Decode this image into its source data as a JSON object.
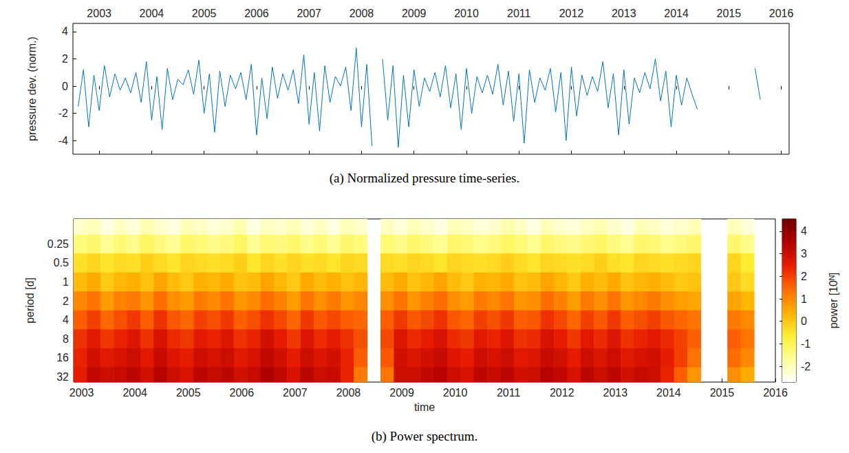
{
  "chart_data": [
    {
      "type": "line",
      "title": "(a) Normalized pressure time-series.",
      "y_label": "pressure dev. (norm.)",
      "color": "#0072bd",
      "xlim": [
        2002.5,
        2016.15
      ],
      "xticks": [
        2003,
        2004,
        2005,
        2006,
        2007,
        2008,
        2009,
        2010,
        2011,
        2012,
        2013,
        2014,
        2015,
        2016
      ],
      "ylim": [
        -5,
        4.6
      ],
      "yticks": [
        -4,
        -2,
        0,
        2,
        4
      ],
      "grid": false,
      "x": [
        2002.6,
        2002.7,
        2002.8,
        2002.9,
        2003,
        2003.1,
        2003.2,
        2003.3,
        2003.4,
        2003.5,
        2003.6,
        2003.7,
        2003.8,
        2003.9,
        2004,
        2004.1,
        2004.2,
        2004.3,
        2004.4,
        2004.5,
        2004.6,
        2004.7,
        2004.8,
        2004.9,
        2005,
        2005.1,
        2005.2,
        2005.3,
        2005.4,
        2005.5,
        2005.6,
        2005.7,
        2005.8,
        2005.9,
        2006,
        2006.1,
        2006.2,
        2006.3,
        2006.4,
        2006.5,
        2006.6,
        2006.7,
        2006.8,
        2006.9,
        2007,
        2007.1,
        2007.2,
        2007.3,
        2007.4,
        2007.5,
        2007.6,
        2007.7,
        2007.8,
        2007.9,
        2008,
        2008.1,
        2008.2,
        2008.3,
        2008.4,
        2008.5,
        2008.6,
        2008.7,
        2008.8,
        2008.9,
        2009,
        2009.1,
        2009.2,
        2009.3,
        2009.4,
        2009.5,
        2009.6,
        2009.7,
        2009.8,
        2009.9,
        2010,
        2010.1,
        2010.2,
        2010.3,
        2010.4,
        2010.5,
        2010.6,
        2010.7,
        2010.8,
        2010.9,
        2011,
        2011.1,
        2011.2,
        2011.3,
        2011.4,
        2011.5,
        2011.6,
        2011.7,
        2011.8,
        2011.9,
        2012,
        2012.1,
        2012.2,
        2012.3,
        2012.4,
        2012.5,
        2012.6,
        2012.7,
        2012.8,
        2012.9,
        2013,
        2013.1,
        2013.2,
        2013.3,
        2013.4,
        2013.5,
        2013.6,
        2013.7,
        2013.8,
        2013.9,
        2014,
        2014.1,
        2014.2,
        2014.3,
        2014.4,
        2015,
        2015.5,
        2015.6
      ],
      "values": [
        -1.5,
        1.2,
        -3.0,
        0.8,
        -1.8,
        1.5,
        -0.8,
        0.9,
        -0.3,
        0.6,
        -0.5,
        1.0,
        -1.2,
        1.8,
        -2.5,
        0.7,
        -3.2,
        1.3,
        -1.0,
        0.5,
        0.1,
        1.2,
        -0.6,
        1.9,
        -2.0,
        0.9,
        -3.4,
        1.1,
        -1.5,
        0.8,
        -0.2,
        1.0,
        -1.0,
        1.6,
        -3.6,
        0.6,
        -2.4,
        1.4,
        -0.9,
        0.9,
        -0.3,
        1.2,
        -1.3,
        2.3,
        -2.8,
        1.0,
        -3.3,
        1.5,
        -1.2,
        0.7,
        0.0,
        1.4,
        -1.8,
        2.8,
        -3.0,
        1.6,
        -4.4,
        null,
        2.0,
        -2.5,
        1.5,
        -4.5,
        0.8,
        -3.0,
        1.2,
        -1.5,
        0.6,
        -0.4,
        1.0,
        -0.8,
        1.5,
        -1.6,
        0.9,
        -3.2,
        1.3,
        -2.0,
        0.7,
        -0.5,
        0.8,
        -0.6,
        1.6,
        -1.4,
        1.1,
        -2.6,
        0.9,
        -4.2,
        1.2,
        -1.2,
        0.6,
        -0.3,
        1.3,
        -1.9,
        1.0,
        -4.0,
        1.4,
        -2.2,
        0.8,
        -0.7,
        0.7,
        -0.4,
        1.8,
        -1.6,
        0.9,
        -3.6,
        1.2,
        -2.8,
        0.6,
        -0.5,
        1.0,
        -0.2,
        2.0,
        -1.1,
        1.1,
        -3.0,
        0.8,
        -1.4,
        0.6,
        -0.6,
        -1.7,
        null,
        1.3,
        -1.0
      ]
    },
    {
      "type": "heatmap",
      "title": "(b) Power spectrum.",
      "x_label": "time",
      "y_label": "period [d]",
      "log": "y",
      "xlim": [
        2002.85,
        2016
      ],
      "xticks": [
        2003,
        2004,
        2005,
        2006,
        2007,
        2008,
        2009,
        2010,
        2011,
        2012,
        2013,
        2014,
        2015,
        2016
      ],
      "ylim": [
        0.1,
        39
      ],
      "yticks": [
        0.25,
        0.5,
        1,
        2,
        4,
        8,
        16,
        32
      ],
      "grid": false,
      "colors": [
        "#ffffff",
        "#ffff99",
        "#ffee33",
        "#ffb000",
        "#ff6a00",
        "#e81c00",
        "#b00000",
        "#700000"
      ],
      "colorbar": {
        "label": "power [10ᴺ]",
        "lim": [
          -2.7,
          4.55
        ],
        "ticks": [
          -2,
          -1,
          0,
          1,
          2,
          3,
          4
        ]
      },
      "x_edges": [
        2002.85,
        2003.1,
        2003.35,
        2003.6,
        2003.85,
        2004.1,
        2004.35,
        2004.6,
        2004.85,
        2005.1,
        2005.35,
        2005.6,
        2005.85,
        2006.1,
        2006.35,
        2006.6,
        2006.85,
        2007.1,
        2007.35,
        2007.6,
        2007.85,
        2008.1,
        2008.35,
        2008.6,
        2008.85,
        2009.1,
        2009.35,
        2009.6,
        2009.85,
        2010.1,
        2010.35,
        2010.6,
        2010.85,
        2011.1,
        2011.35,
        2011.6,
        2011.85,
        2012.1,
        2012.35,
        2012.6,
        2012.85,
        2013.1,
        2013.35,
        2013.6,
        2013.85,
        2014.1,
        2014.35,
        2014.6,
        2014.85,
        2015.1,
        2015.35,
        2015.6
      ],
      "periods": [
        0.125,
        0.25,
        0.5,
        1,
        2,
        4,
        8,
        16,
        32
      ],
      "power": [
        [
          -2.2,
          -2.0,
          -2.4,
          -2.1,
          -2.3,
          -1.9,
          -2.2,
          -2.4,
          -2.0,
          -2.1,
          -2.3,
          -2.2,
          -1.9,
          -2.4,
          -2.1,
          -2.2,
          -2.0,
          -2.3,
          -2.1,
          -2.4,
          -2.0,
          -2.2,
          null,
          -2.1,
          -2.3,
          -2.0,
          -2.2,
          -2.4,
          -2.0,
          -2.1,
          -2.3,
          -2.2,
          -1.9,
          -2.1,
          -2.4,
          -2.0,
          -2.2,
          -2.3,
          -2.1,
          -1.9,
          -2.2,
          -2.4,
          -2.0,
          -2.1,
          -2.3,
          -2.2,
          -2.0,
          null,
          null,
          -2.0,
          -2.3
        ],
        [
          -1.4,
          -1.2,
          -1.6,
          -1.3,
          -1.5,
          -1.1,
          -1.4,
          -1.6,
          -1.2,
          -1.3,
          -1.5,
          -1.4,
          -1.1,
          -1.6,
          -1.3,
          -1.4,
          -1.2,
          -1.5,
          -1.3,
          -1.6,
          -1.2,
          -1.4,
          null,
          -1.3,
          -1.5,
          -1.2,
          -1.4,
          -1.6,
          -1.2,
          -1.3,
          -1.5,
          -1.4,
          -1.1,
          -1.3,
          -1.6,
          -1.2,
          -1.4,
          -1.5,
          -1.3,
          -1.1,
          -1.4,
          -1.6,
          -1.2,
          -1.3,
          -1.5,
          -1.4,
          -1.2,
          null,
          null,
          -1.2,
          -1.5
        ],
        [
          -0.4,
          -0.2,
          -0.5,
          -0.3,
          -0.4,
          -0.1,
          -0.3,
          -0.5,
          -0.2,
          -0.3,
          -0.4,
          -0.3,
          -0.1,
          -0.5,
          -0.2,
          -0.4,
          -0.2,
          -0.4,
          -0.3,
          -0.5,
          -0.2,
          -0.3,
          null,
          -0.3,
          -0.4,
          -0.2,
          -0.3,
          -0.5,
          -0.2,
          -0.3,
          -0.4,
          -0.3,
          -0.1,
          -0.3,
          -0.5,
          -0.2,
          -0.3,
          -0.4,
          -0.3,
          -0.1,
          -0.4,
          -0.5,
          -0.2,
          -0.3,
          -0.4,
          -0.3,
          -0.2,
          null,
          null,
          -0.2,
          -0.6
        ],
        [
          0.2,
          0.5,
          0.0,
          0.3,
          0.4,
          0.1,
          0.6,
          0.2,
          0.0,
          0.4,
          0.3,
          0.5,
          0.1,
          0.2,
          0.6,
          0.3,
          0.0,
          0.5,
          0.2,
          0.4,
          0.1,
          0.3,
          null,
          0.2,
          0.5,
          0.1,
          0.3,
          0.6,
          0.2,
          0.0,
          0.4,
          0.3,
          0.5,
          0.1,
          0.2,
          0.6,
          0.3,
          0.0,
          0.4,
          0.2,
          0.5,
          0.1,
          0.3,
          0.4,
          0.2,
          0.0,
          0.1,
          null,
          null,
          0.0,
          -0.3
        ],
        [
          1.0,
          1.3,
          0.7,
          1.1,
          1.2,
          0.8,
          1.4,
          0.9,
          0.7,
          1.2,
          1.0,
          1.3,
          0.8,
          1.0,
          1.4,
          1.1,
          0.7,
          1.3,
          0.9,
          1.2,
          0.8,
          1.0,
          null,
          0.9,
          1.3,
          0.8,
          1.1,
          1.4,
          0.9,
          0.7,
          1.2,
          1.0,
          1.3,
          0.8,
          0.9,
          1.4,
          1.1,
          0.7,
          1.2,
          0.9,
          1.3,
          0.8,
          1.0,
          1.2,
          0.9,
          0.7,
          0.6,
          null,
          null,
          0.6,
          0.3
        ],
        [
          1.6,
          2.0,
          1.5,
          1.8,
          2.1,
          1.6,
          2.2,
          1.7,
          1.5,
          2.0,
          1.8,
          2.1,
          1.6,
          1.8,
          2.2,
          1.9,
          1.5,
          2.1,
          1.7,
          1.9,
          1.6,
          1.5,
          null,
          1.6,
          2.1,
          1.7,
          1.9,
          2.2,
          1.7,
          1.5,
          2.0,
          1.8,
          2.1,
          1.6,
          1.7,
          2.2,
          1.9,
          1.5,
          2.0,
          1.7,
          2.1,
          1.6,
          1.8,
          2.0,
          1.7,
          1.5,
          1.3,
          null,
          null,
          1.2,
          1.0
        ],
        [
          2.2,
          2.6,
          2.1,
          2.4,
          2.7,
          2.2,
          2.8,
          2.3,
          2.1,
          2.6,
          2.4,
          2.7,
          2.2,
          2.4,
          2.9,
          2.5,
          2.1,
          2.7,
          2.3,
          2.5,
          2.2,
          1.8,
          null,
          1.9,
          2.7,
          2.3,
          2.5,
          2.8,
          2.3,
          2.1,
          2.6,
          2.4,
          2.7,
          2.2,
          2.3,
          2.8,
          2.5,
          2.1,
          2.6,
          2.3,
          2.7,
          2.2,
          2.4,
          2.6,
          2.3,
          2.0,
          1.6,
          null,
          null,
          1.6,
          1.3
        ],
        [
          2.4,
          2.9,
          2.6,
          2.8,
          3.0,
          2.6,
          3.1,
          2.7,
          2.5,
          3.0,
          2.8,
          3.0,
          2.6,
          2.8,
          3.2,
          2.9,
          2.5,
          3.0,
          2.7,
          2.9,
          2.4,
          1.6,
          null,
          1.7,
          2.9,
          2.7,
          2.9,
          3.1,
          2.7,
          2.5,
          3.0,
          2.8,
          3.0,
          2.6,
          2.7,
          3.1,
          2.9,
          2.5,
          3.0,
          2.7,
          3.0,
          2.6,
          2.8,
          2.9,
          2.5,
          2.0,
          1.3,
          null,
          null,
          1.4,
          1.0
        ],
        [
          2.5,
          3.2,
          3.0,
          3.1,
          3.3,
          2.9,
          3.4,
          3.0,
          2.8,
          3.3,
          3.1,
          3.3,
          2.9,
          3.1,
          3.5,
          3.2,
          2.8,
          3.3,
          3.0,
          3.1,
          2.4,
          1.2,
          null,
          1.3,
          3.0,
          3.0,
          3.2,
          3.4,
          3.0,
          2.8,
          3.3,
          3.1,
          3.3,
          2.9,
          3.0,
          3.4,
          3.2,
          2.8,
          3.3,
          3.0,
          3.3,
          2.9,
          3.1,
          3.0,
          2.4,
          1.6,
          0.8,
          null,
          null,
          0.9,
          0.5
        ]
      ]
    }
  ]
}
